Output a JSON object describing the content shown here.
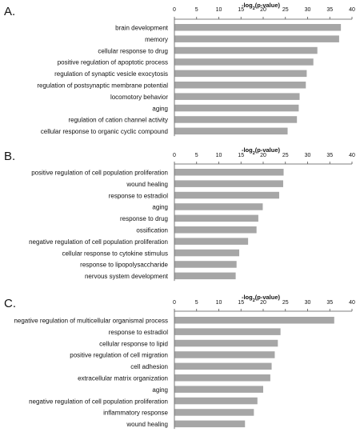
{
  "figure": {
    "bar_color": "#a6a6a6",
    "axis_color": "#555555",
    "text_color": "#111111"
  },
  "chart_data": [
    {
      "type": "bar",
      "orientation": "horizontal",
      "panel_label": "A.",
      "xlabel_prefix": "-log",
      "xlabel_sub": "2",
      "xlabel_suffix": "(p-value)",
      "xlim": [
        0,
        40
      ],
      "xticks": [
        0,
        5,
        10,
        15,
        20,
        25,
        30,
        35,
        40
      ],
      "xaxis_position": "top",
      "grid": false,
      "categories": [
        "brain development",
        "memory",
        "cellular response to drug",
        "positive regulation of apoptotic process",
        "regulation of synaptic vesicle exocytosis",
        "regulation of postsynaptic membrane potential",
        "locomotory behavior",
        "aging",
        "regulation of cation channel activity",
        "cellular response to organic cyclic compound"
      ],
      "values": [
        37.5,
        37.1,
        32.2,
        31.3,
        29.8,
        29.6,
        28.2,
        28.0,
        27.6,
        25.5
      ]
    },
    {
      "type": "bar",
      "orientation": "horizontal",
      "panel_label": "B.",
      "xlabel_prefix": "-log",
      "xlabel_sub": "2",
      "xlabel_suffix": "(p-value)",
      "xlim": [
        0,
        40
      ],
      "xticks": [
        0,
        5,
        10,
        15,
        20,
        25,
        30,
        35,
        40
      ],
      "xaxis_position": "top",
      "grid": false,
      "categories": [
        "positive regulation of cell population proliferation",
        "wound healing",
        "response to estradiol",
        "aging",
        "response to drug",
        "ossification",
        "negative regulation of cell population proliferation",
        "cellular response to cytokine stimulus",
        "response to lipopolysaccharide",
        "nervous system development"
      ],
      "values": [
        24.6,
        24.5,
        23.6,
        19.9,
        18.9,
        18.5,
        16.6,
        14.6,
        14.0,
        13.8
      ]
    },
    {
      "type": "bar",
      "orientation": "horizontal",
      "panel_label": "C.",
      "xlabel_prefix": "-log",
      "xlabel_sub": "2",
      "xlabel_suffix": "(p-value)",
      "xlim": [
        0,
        40
      ],
      "xticks": [
        0,
        5,
        10,
        15,
        20,
        25,
        30,
        35,
        40
      ],
      "xaxis_position": "top",
      "grid": false,
      "categories": [
        "negative regulation of multicellular organismal process",
        "response to estradiol",
        "cellular response to lipid",
        "positive regulation of cell migration",
        "cell adhesion",
        "extracellular matrix organization",
        "aging",
        "negative regulation of cell population proliferation",
        "inflammatory response",
        "wound healing"
      ],
      "values": [
        36.0,
        23.9,
        23.3,
        22.6,
        21.9,
        21.6,
        20.0,
        18.7,
        17.9,
        15.9
      ]
    }
  ]
}
